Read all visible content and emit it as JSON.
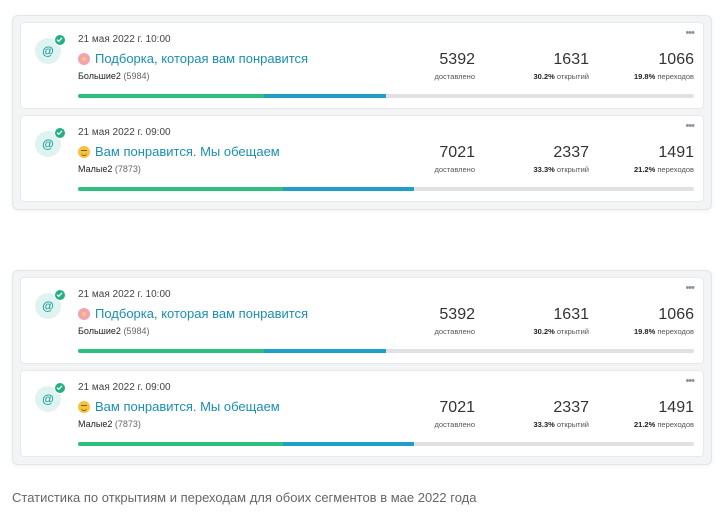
{
  "groups": [
    {
      "cards": [
        {
          "date": "21 мая 2022 г. 10:00",
          "title": "Подборка, которая вам понравится",
          "emoji_icon": "flower-icon",
          "segment_name": "Большие2",
          "segment_count": "(5984)",
          "delivered": {
            "value": "5392",
            "label": "доставлено"
          },
          "opens": {
            "value": "1631",
            "pct": "30.2%",
            "label": "открытий"
          },
          "clicks": {
            "value": "1066",
            "pct": "19.8%",
            "label": "переходов"
          },
          "progress": {
            "open_fraction": 0.302,
            "click_fraction": 0.198
          }
        },
        {
          "date": "21 мая 2022 г. 09:00",
          "title": "Вам понравится. Мы обещаем",
          "emoji_icon": "smile-icon",
          "segment_name": "Малые2",
          "segment_count": "(7873)",
          "delivered": {
            "value": "7021",
            "label": "доставлено"
          },
          "opens": {
            "value": "2337",
            "pct": "33.3%",
            "label": "открытий"
          },
          "clicks": {
            "value": "1491",
            "pct": "21.2%",
            "label": "переходов"
          },
          "progress": {
            "open_fraction": 0.333,
            "click_fraction": 0.212
          }
        }
      ]
    },
    {
      "cards": [
        {
          "date": "21 мая 2022 г. 10:00",
          "title": "Подборка, которая вам понравится",
          "emoji_icon": "flower-icon",
          "segment_name": "Большие2",
          "segment_count": "(5984)",
          "delivered": {
            "value": "5392",
            "label": "доставлено"
          },
          "opens": {
            "value": "1631",
            "pct": "30.2%",
            "label": "открытий"
          },
          "clicks": {
            "value": "1066",
            "pct": "19.8%",
            "label": "переходов"
          },
          "progress": {
            "open_fraction": 0.302,
            "click_fraction": 0.198
          }
        },
        {
          "date": "21 мая 2022 г. 09:00",
          "title": "Вам понравится. Мы обещаем",
          "emoji_icon": "smile-icon",
          "segment_name": "Малые2",
          "segment_count": "(7873)",
          "delivered": {
            "value": "7021",
            "label": "доставлено"
          },
          "opens": {
            "value": "2337",
            "pct": "33.3%",
            "label": "открытий"
          },
          "clicks": {
            "value": "1491",
            "pct": "21.2%",
            "label": "переходов"
          },
          "progress": {
            "open_fraction": 0.333,
            "click_fraction": 0.212
          }
        }
      ]
    }
  ],
  "caption": "Статистика по открытиям и переходам для обоих сегментов в мае 2022 года",
  "colors": {
    "accent_title": "#1a8fb0",
    "bar_open": "#2dbf7f",
    "bar_click": "#1f9ec8",
    "bar_track": "#dfe1e4",
    "badge_check": "#24b083"
  },
  "icons": {
    "channel": "email-at-icon",
    "status": "check-icon",
    "menu": "more-dots-icon"
  }
}
